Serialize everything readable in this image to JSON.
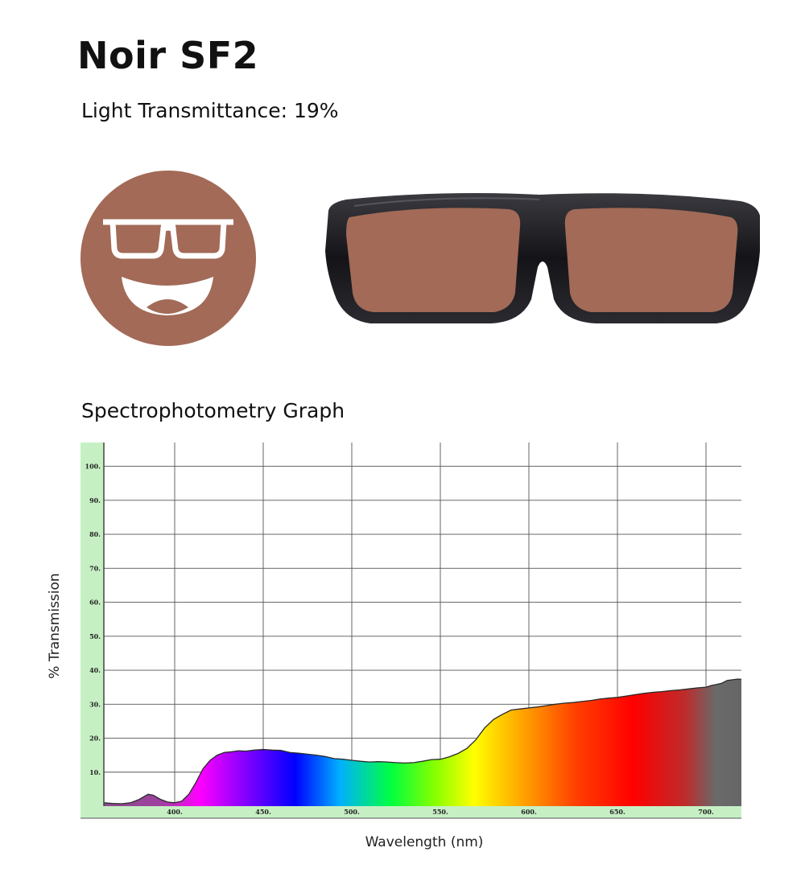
{
  "header": {
    "title": "Noir SF2",
    "light_transmittance": "Light Transmittance: 19%"
  },
  "colors": {
    "lens_tint": "#a26a57",
    "frame": "#141418",
    "axis_panel": "#c6f0c4"
  },
  "icons": {
    "face": "smiling-face-with-glasses-icon",
    "product": "sunglasses"
  },
  "graph": {
    "heading": "Spectrophotometry Graph"
  },
  "chart_data": {
    "type": "area",
    "title": "",
    "xlabel": "Wavelength (nm)",
    "ylabel": "% Transmission",
    "xlim": [
      360,
      720
    ],
    "ylim": [
      0,
      107
    ],
    "x_ticks": [
      400,
      450,
      500,
      550,
      600,
      650,
      700
    ],
    "x_tick_labels": [
      "400.",
      "450.",
      "500.",
      "550.",
      "600.",
      "650.",
      "700."
    ],
    "y_ticks": [
      10,
      20,
      30,
      40,
      50,
      60,
      70,
      80,
      90,
      100
    ],
    "y_tick_labels": [
      "10.",
      "20.",
      "30.",
      "40.",
      "50.",
      "60.",
      "70.",
      "80.",
      "90.",
      "100."
    ],
    "grid": true,
    "fill": "visible spectrum colors",
    "series": [
      {
        "x": [
          360,
          365,
          370,
          375,
          380,
          385,
          388,
          392,
          396,
          400,
          404,
          408,
          412,
          416,
          420,
          424,
          428,
          432,
          436,
          440,
          445,
          450,
          455,
          460,
          465,
          470,
          475,
          480,
          485,
          490,
          495,
          500,
          505,
          510,
          515,
          520,
          525,
          530,
          535,
          540,
          545,
          550,
          555,
          560,
          565,
          570,
          575,
          580,
          585,
          590,
          595,
          600,
          605,
          610,
          615,
          620,
          625,
          630,
          635,
          640,
          645,
          650,
          655,
          660,
          665,
          670,
          675,
          680,
          685,
          690,
          695,
          700,
          703,
          706,
          709,
          712,
          715,
          718,
          720
        ],
        "y": [
          1,
          0.8,
          0.7,
          1,
          2,
          3.5,
          3.2,
          2,
          1.2,
          1,
          1.5,
          3.5,
          7,
          11,
          13.5,
          15,
          15.8,
          16,
          16.3,
          16.2,
          16.5,
          16.7,
          16.5,
          16.4,
          15.8,
          15.6,
          15.3,
          15,
          14.6,
          14,
          13.8,
          13.5,
          13.2,
          13,
          13.1,
          13,
          12.8,
          12.7,
          12.8,
          13.2,
          13.7,
          13.8,
          14.5,
          15.5,
          17,
          19.5,
          23,
          25.5,
          27,
          28.3,
          28.6,
          28.9,
          29.2,
          29.6,
          30,
          30.3,
          30.5,
          30.8,
          31.1,
          31.5,
          31.8,
          32,
          32.4,
          32.8,
          33.2,
          33.5,
          33.7,
          34,
          34.2,
          34.5,
          34.8,
          35,
          35.5,
          35.8,
          36.2,
          37,
          37.2,
          37.4,
          37.3
        ]
      }
    ]
  }
}
